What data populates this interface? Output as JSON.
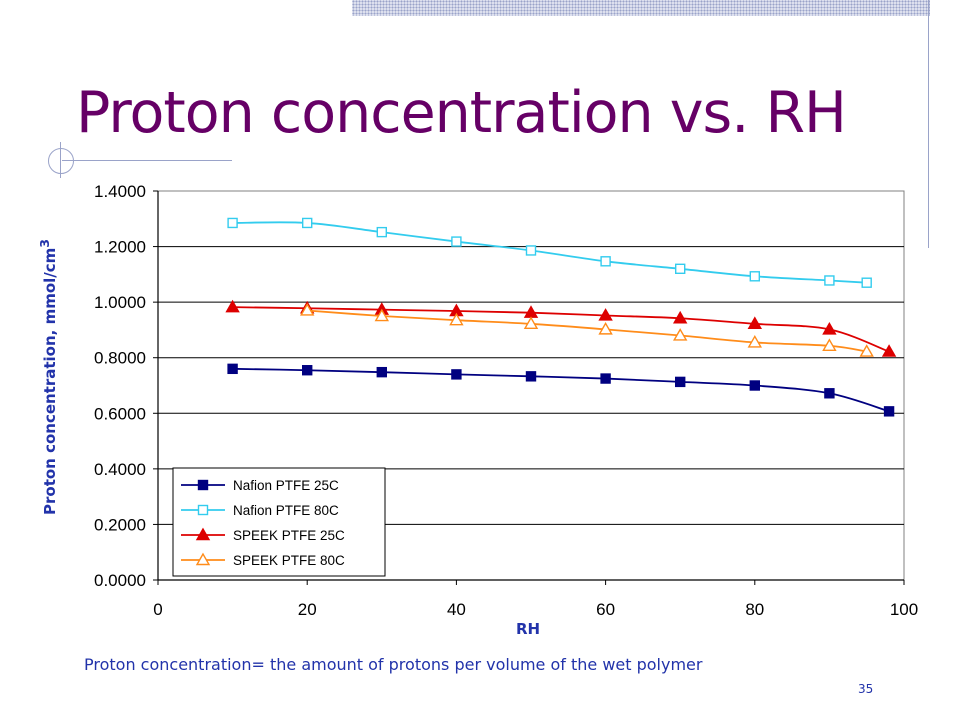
{
  "slide": {
    "title": "Proton concentration vs. RH",
    "caption": "Proton concentration= the amount of protons per volume of the wet polymer",
    "page_number": "35"
  },
  "chart_data": {
    "type": "line",
    "xlabel": "RH",
    "ylabel": "Proton concentration, mmol/cm",
    "ylabel_superscript": "3",
    "xlim": [
      0,
      100
    ],
    "ylim": [
      0,
      1.4
    ],
    "x_ticks": [
      "0",
      "20",
      "40",
      "60",
      "80",
      "100"
    ],
    "y_ticks": [
      "0.0000",
      "0.2000",
      "0.4000",
      "0.6000",
      "0.8000",
      "1.0000",
      "1.2000",
      "1.4000"
    ],
    "grid": "horizontal",
    "legend_position": "bottom-left",
    "series": [
      {
        "name": "Nafion PTFE 25C",
        "marker": "square-filled",
        "color": "#000080",
        "x": [
          10,
          20,
          30,
          40,
          50,
          60,
          70,
          80,
          90,
          98
        ],
        "y": [
          0.76,
          0.755,
          0.748,
          0.74,
          0.733,
          0.725,
          0.713,
          0.7,
          0.672,
          0.607
        ]
      },
      {
        "name": "Nafion PTFE 80C",
        "marker": "square-open",
        "color": "#33ccee",
        "x": [
          10,
          20,
          30,
          40,
          50,
          60,
          70,
          80,
          90,
          95
        ],
        "y": [
          1.285,
          1.285,
          1.252,
          1.218,
          1.186,
          1.147,
          1.12,
          1.093,
          1.078,
          1.07
        ]
      },
      {
        "name": "SPEEK PTFE 25C",
        "marker": "triangle-filled",
        "color": "#dd0000",
        "x": [
          10,
          20,
          30,
          40,
          50,
          60,
          70,
          80,
          90,
          98
        ],
        "y": [
          0.982,
          0.978,
          0.973,
          0.968,
          0.962,
          0.952,
          0.942,
          0.922,
          0.902,
          0.822
        ]
      },
      {
        "name": "SPEEK PTFE 80C",
        "marker": "triangle-open",
        "color": "#ff8c1a",
        "x": [
          20,
          30,
          40,
          50,
          60,
          70,
          80,
          90,
          95
        ],
        "y": [
          0.97,
          0.95,
          0.935,
          0.922,
          0.902,
          0.88,
          0.855,
          0.843,
          0.822
        ]
      }
    ]
  }
}
